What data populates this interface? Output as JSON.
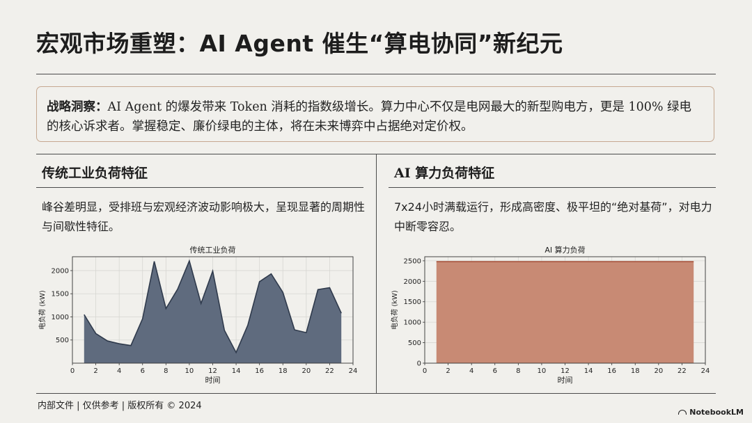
{
  "slide": {
    "title": "宏观市场重塑：AI Agent 催生“算电协同”新纪元",
    "insight_label": "战略洞察：",
    "insight_text": "AI Agent 的爆发带来 Token 消耗的指数级增长。算力中心不仅是电网最大的新型购电方，更是 100% 绿电的核心诉求者。掌握稳定、廉价绿电的主体，将在未来博弈中占据绝对定价权。"
  },
  "left": {
    "heading": "传统工业负荷特征",
    "description": "峰谷差明显，受排班与宏观经济波动影响极大，呈现显著的周期性与间歇性特征。"
  },
  "right": {
    "heading": "AI 算力负荷特征",
    "description": "7x24小时满载运行，形成高密度、极平坦的“绝对基荷”，对电力中断零容忍。"
  },
  "footer": {
    "text": "内部文件 | 仅供参考 | 版权所有 © 2024",
    "brand": "NotebookLM"
  },
  "chart_data": [
    {
      "type": "area",
      "title": "传统工业负荷",
      "xlabel": "时间",
      "ylabel": "电负荷 (kW)",
      "x": [
        1,
        2,
        3,
        4,
        5,
        6,
        7,
        8,
        9,
        10,
        11,
        12,
        13,
        14,
        15,
        16,
        17,
        18,
        19,
        20,
        21,
        22,
        23
      ],
      "values": [
        1050,
        640,
        480,
        420,
        380,
        960,
        2200,
        1180,
        1600,
        2210,
        1290,
        1990,
        710,
        230,
        820,
        1760,
        1930,
        1530,
        720,
        660,
        1590,
        1630,
        1080
      ],
      "xlim": [
        0,
        24
      ],
      "ylim": [
        0,
        2300
      ],
      "xticks": [
        0,
        2,
        4,
        6,
        8,
        10,
        12,
        14,
        16,
        18,
        20,
        22,
        24
      ],
      "yticks": [
        500,
        1000,
        1500,
        2000
      ],
      "grid": true,
      "color": "#5f6b7e",
      "edge_color": "#2f3a4c"
    },
    {
      "type": "area",
      "title": "AI 算力负荷",
      "xlabel": "时间",
      "ylabel": "电负荷 (kW)",
      "x": [
        1,
        2,
        3,
        4,
        5,
        6,
        7,
        8,
        9,
        10,
        11,
        12,
        13,
        14,
        15,
        16,
        17,
        18,
        19,
        20,
        21,
        22,
        23
      ],
      "values": [
        2480,
        2480,
        2480,
        2480,
        2480,
        2480,
        2480,
        2480,
        2480,
        2480,
        2480,
        2480,
        2480,
        2480,
        2480,
        2480,
        2480,
        2480,
        2480,
        2480,
        2480,
        2480,
        2480
      ],
      "xlim": [
        0,
        24
      ],
      "ylim": [
        0,
        2600
      ],
      "xticks": [
        0,
        2,
        4,
        6,
        8,
        10,
        12,
        14,
        16,
        18,
        20,
        22,
        24
      ],
      "yticks": [
        0,
        500,
        1000,
        1500,
        2000,
        2500
      ],
      "grid": true,
      "color": "#c88a74",
      "edge_color": "#a9543e"
    }
  ]
}
